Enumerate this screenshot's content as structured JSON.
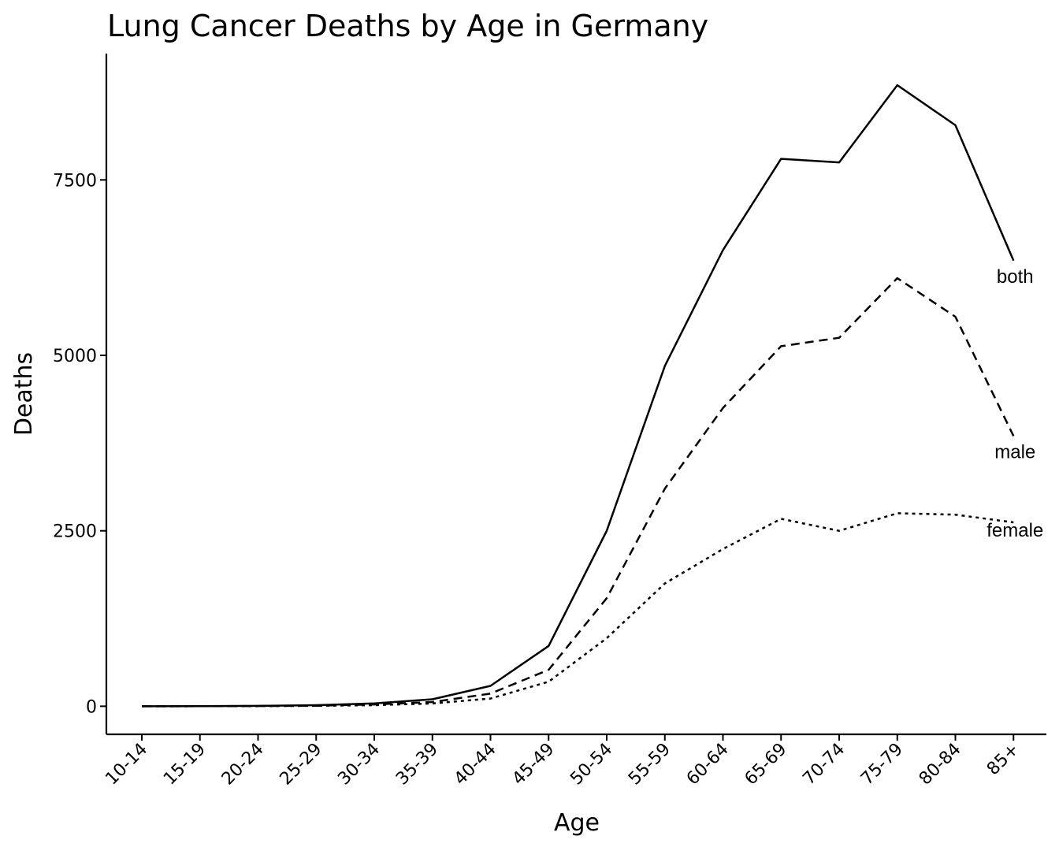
{
  "chart_data": {
    "type": "line",
    "title": "Lung Cancer Deaths by Age in Germany",
    "xlabel": "Age",
    "ylabel": "Deaths",
    "categories": [
      "10-14",
      "15-19",
      "20-24",
      "25-29",
      "30-34",
      "35-39",
      "40-44",
      "45-49",
      "50-54",
      "55-59",
      "60-64",
      "65-69",
      "70-74",
      "75-79",
      "80-84",
      "85+"
    ],
    "ylim": [
      -400,
      9300
    ],
    "yticks": [
      0,
      2500,
      5000,
      7500
    ],
    "ytick_labels": [
      "0",
      "2500",
      "5000",
      "7500"
    ],
    "grid": false,
    "legend": "direct labels at right end of lines",
    "series": [
      {
        "name": "both",
        "linestyle": "solid",
        "values": [
          0,
          2,
          5,
          15,
          40,
          100,
          290,
          860,
          2500,
          4850,
          6500,
          7800,
          7750,
          8850,
          8280,
          6350
        ]
      },
      {
        "name": "male",
        "linestyle": "dashed",
        "values": [
          0,
          1,
          3,
          8,
          25,
          60,
          180,
          520,
          1540,
          3100,
          4250,
          5130,
          5250,
          6100,
          5550,
          3850
        ]
      },
      {
        "name": "female",
        "linestyle": "dotted",
        "values": [
          0,
          1,
          2,
          6,
          15,
          40,
          110,
          350,
          970,
          1750,
          2240,
          2670,
          2500,
          2750,
          2730,
          2620
        ]
      }
    ]
  }
}
